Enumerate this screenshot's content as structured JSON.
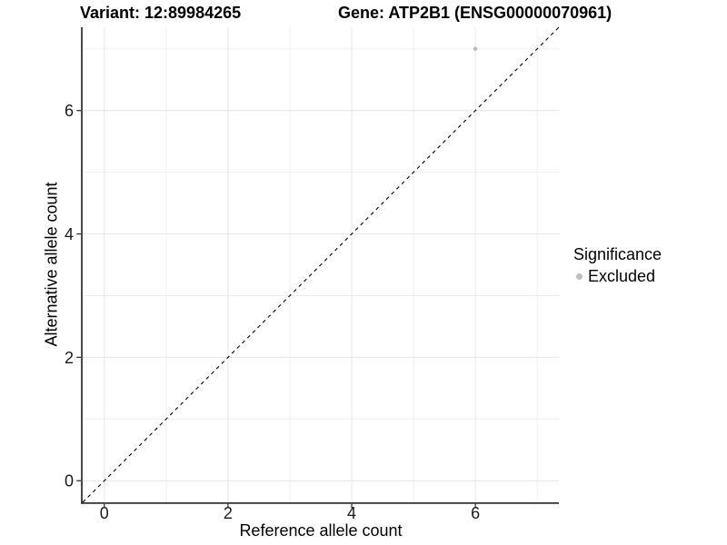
{
  "chart_data": {
    "type": "scatter",
    "title_left": "Variant: 12:89984265",
    "title_right": "Gene: ATP2B1 (ENSG00000070961)",
    "xlabel": "Reference allele count",
    "ylabel": "Alternative allele count",
    "xlim": [
      -0.35,
      7.35
    ],
    "ylim": [
      -0.35,
      7.35
    ],
    "x_ticks": [
      0,
      2,
      4,
      6
    ],
    "y_ticks": [
      0,
      2,
      4,
      6
    ],
    "x_minor_gridlines": [
      1,
      3,
      5,
      7
    ],
    "y_minor_gridlines": [
      1,
      3,
      5,
      7
    ],
    "grid": true,
    "series": [
      {
        "name": "Excluded",
        "color": "#bebebe",
        "points": [
          [
            6,
            7
          ]
        ]
      }
    ],
    "reference_line": {
      "type": "identity",
      "slope": 1,
      "intercept": 0,
      "style": "dashed",
      "color": "#000000"
    },
    "legend": {
      "title": "Significance",
      "position": "right",
      "items": [
        {
          "label": "Excluded",
          "color": "#bebebe"
        }
      ]
    },
    "colors": {
      "background": "#ffffff",
      "grid_major": "#e6e6e6",
      "grid_minor": "#efefef",
      "axis": "#333333",
      "tick_label": "#1a1a1a",
      "point": "#bebebe"
    }
  }
}
